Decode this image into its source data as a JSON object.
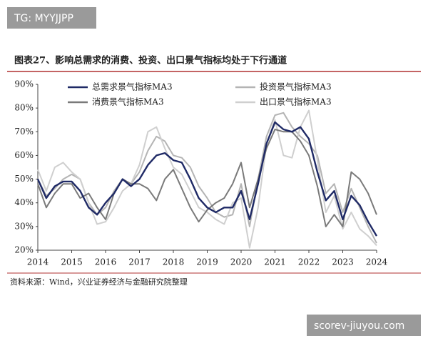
{
  "watermarks": [
    "TG: MYYJJPP",
    "scorev-jiuyou.com"
  ],
  "chart_data": {
    "type": "line",
    "title": "图表27、影响总需求的消费、投资、出口景气指标均处于下行通道",
    "source": "资料来源：Wind，兴业证券经济与金融研究院整理",
    "x": [
      2014,
      2014.25,
      2014.5,
      2014.75,
      2015,
      2015.25,
      2015.5,
      2015.75,
      2016,
      2016.25,
      2016.5,
      2016.75,
      2017,
      2017.25,
      2017.5,
      2017.75,
      2018,
      2018.25,
      2018.5,
      2018.75,
      2019,
      2019.25,
      2019.5,
      2019.75,
      2020,
      2020.25,
      2020.5,
      2020.75,
      2021,
      2021.25,
      2021.5,
      2021.75,
      2022,
      2022.25,
      2022.5,
      2022.75,
      2023,
      2023.25,
      2023.5,
      2023.75,
      2024
    ],
    "xlim": [
      2014,
      2024
    ],
    "xticks": [
      2014,
      2015,
      2016,
      2017,
      2018,
      2019,
      2020,
      2021,
      2022,
      2023,
      2024
    ],
    "ylim": [
      20,
      90
    ],
    "yticks": [
      {
        "value": 20,
        "label": "20%"
      },
      {
        "value": 30,
        "label": "30%"
      },
      {
        "value": 40,
        "label": "40%"
      },
      {
        "value": 50,
        "label": "50%"
      },
      {
        "value": 60,
        "label": "60%"
      },
      {
        "value": 70,
        "label": "70%"
      },
      {
        "value": 80,
        "label": "80%"
      },
      {
        "value": 90,
        "label": "90%"
      }
    ],
    "grid": false,
    "series": [
      {
        "name": "总需求景气指标MA3",
        "color": "#1f2a66",
        "values": [
          50,
          42,
          47,
          49,
          49,
          45,
          38,
          35,
          40,
          44,
          50,
          47,
          50,
          56,
          60,
          61,
          58,
          57,
          50,
          42,
          38,
          36,
          38,
          38,
          45,
          33,
          48,
          65,
          74,
          71,
          70,
          72,
          67,
          53,
          41,
          45,
          33,
          43,
          39,
          32,
          26
        ]
      },
      {
        "name": "投资景气指标MA3",
        "color": "#b4b4b4",
        "values": [
          50,
          43,
          46,
          50,
          52,
          50,
          40,
          35,
          38,
          45,
          50,
          48,
          53,
          62,
          68,
          66,
          60,
          59,
          55,
          47,
          42,
          36,
          34,
          35,
          48,
          30,
          50,
          68,
          77,
          78,
          72,
          68,
          65,
          60,
          44,
          48,
          36,
          46,
          38,
          30,
          23
        ]
      },
      {
        "name": "消费景气指标MA3",
        "color": "#7a7a7a",
        "values": [
          48,
          38,
          44,
          48,
          48,
          42,
          44,
          38,
          33,
          44,
          50,
          48,
          48,
          46,
          41,
          50,
          54,
          46,
          38,
          32,
          37,
          40,
          42,
          48,
          57,
          38,
          50,
          63,
          71,
          70,
          70,
          66,
          60,
          47,
          30,
          35,
          30,
          53,
          50,
          44,
          35
        ]
      },
      {
        "name": "出口景气指标MA3",
        "color": "#cfcfcf",
        "values": [
          54,
          45,
          55,
          57,
          53,
          50,
          40,
          31,
          32,
          38,
          45,
          48,
          56,
          70,
          72,
          63,
          55,
          52,
          45,
          38,
          36,
          33,
          31,
          40,
          42,
          21,
          38,
          65,
          75,
          60,
          59,
          72,
          79,
          58,
          36,
          43,
          29,
          36,
          29,
          26,
          22
        ]
      }
    ]
  }
}
